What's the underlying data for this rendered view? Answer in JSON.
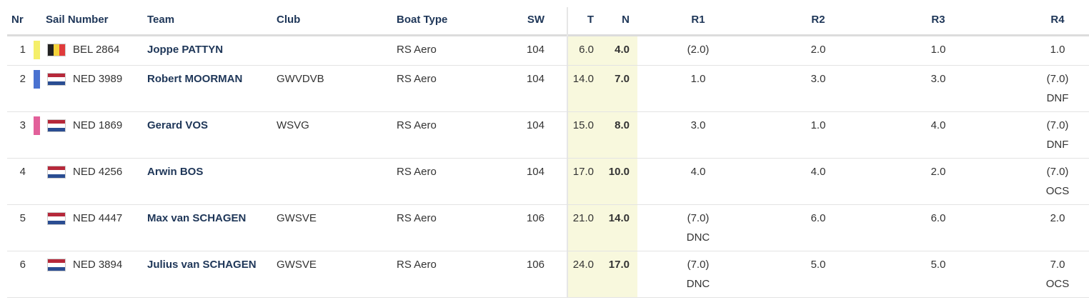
{
  "header": [
    "Nr",
    "Sail Number",
    "Team",
    "Club",
    "Boat Type",
    "SW",
    "T",
    "N",
    "R1",
    "R2",
    "R3",
    "R4"
  ],
  "rows": [
    {
      "nr": "1",
      "marker_color": "#f5ef6a",
      "sail_number": "BEL 2864",
      "team": "Joppe PATTYN",
      "boat_type": "RS Aero",
      "sw": "104",
      "t": "6.0",
      "n": "4.0",
      "races": [
        {
          "score": "(2.0)"
        },
        {
          "score": "2.0"
        },
        {
          "score": "1.0"
        },
        {
          "score": "1.0"
        }
      ]
    },
    {
      "nr": "2",
      "marker_color": "#4a72d0",
      "sail_number": "NED 3989",
      "team": "Robert MOORMAN",
      "club": "GWVDVB",
      "boat_type": "RS Aero",
      "sw": "104",
      "t": "14.0",
      "n": "7.0",
      "races": [
        {
          "score": "1.0"
        },
        {
          "score": "3.0"
        },
        {
          "score": "3.0"
        },
        {
          "score": "(7.0)",
          "code": "DNF"
        }
      ]
    },
    {
      "nr": "3",
      "marker_color": "#e2609a",
      "sail_number": "NED 1869",
      "team": "Gerard VOS",
      "club": "WSVG",
      "boat_type": "RS Aero",
      "sw": "104",
      "t": "15.0",
      "n": "8.0",
      "races": [
        {
          "score": "3.0"
        },
        {
          "score": "1.0"
        },
        {
          "score": "4.0"
        },
        {
          "score": "(7.0)",
          "code": "DNF"
        }
      ]
    },
    {
      "nr": "4",
      "sail_number": "NED 4256",
      "team": "Arwin BOS",
      "boat_type": "RS Aero",
      "sw": "104",
      "t": "17.0",
      "n": "10.0",
      "races": [
        {
          "score": "4.0"
        },
        {
          "score": "4.0"
        },
        {
          "score": "2.0"
        },
        {
          "score": "(7.0)",
          "code": "OCS"
        }
      ]
    },
    {
      "nr": "5",
      "sail_number": "NED 4447",
      "team": "Max van SCHAGEN",
      "club": "GWSVE",
      "boat_type": "RS Aero",
      "sw": "106",
      "t": "21.0",
      "n": "14.0",
      "races": [
        {
          "score": "(7.0)",
          "code": "DNC"
        },
        {
          "score": "6.0"
        },
        {
          "score": "6.0"
        },
        {
          "score": "2.0"
        }
      ]
    },
    {
      "nr": "6",
      "sail_number": "NED 3894",
      "team": "Julius van SCHAGEN",
      "club": "GWSVE",
      "boat_type": "RS Aero",
      "sw": "106",
      "t": "24.0",
      "n": "17.0",
      "races": [
        {
          "score": "(7.0)",
          "code": "DNC"
        },
        {
          "score": "5.0"
        },
        {
          "score": "5.0"
        },
        {
          "score": "7.0",
          "code": "OCS"
        }
      ]
    }
  ]
}
